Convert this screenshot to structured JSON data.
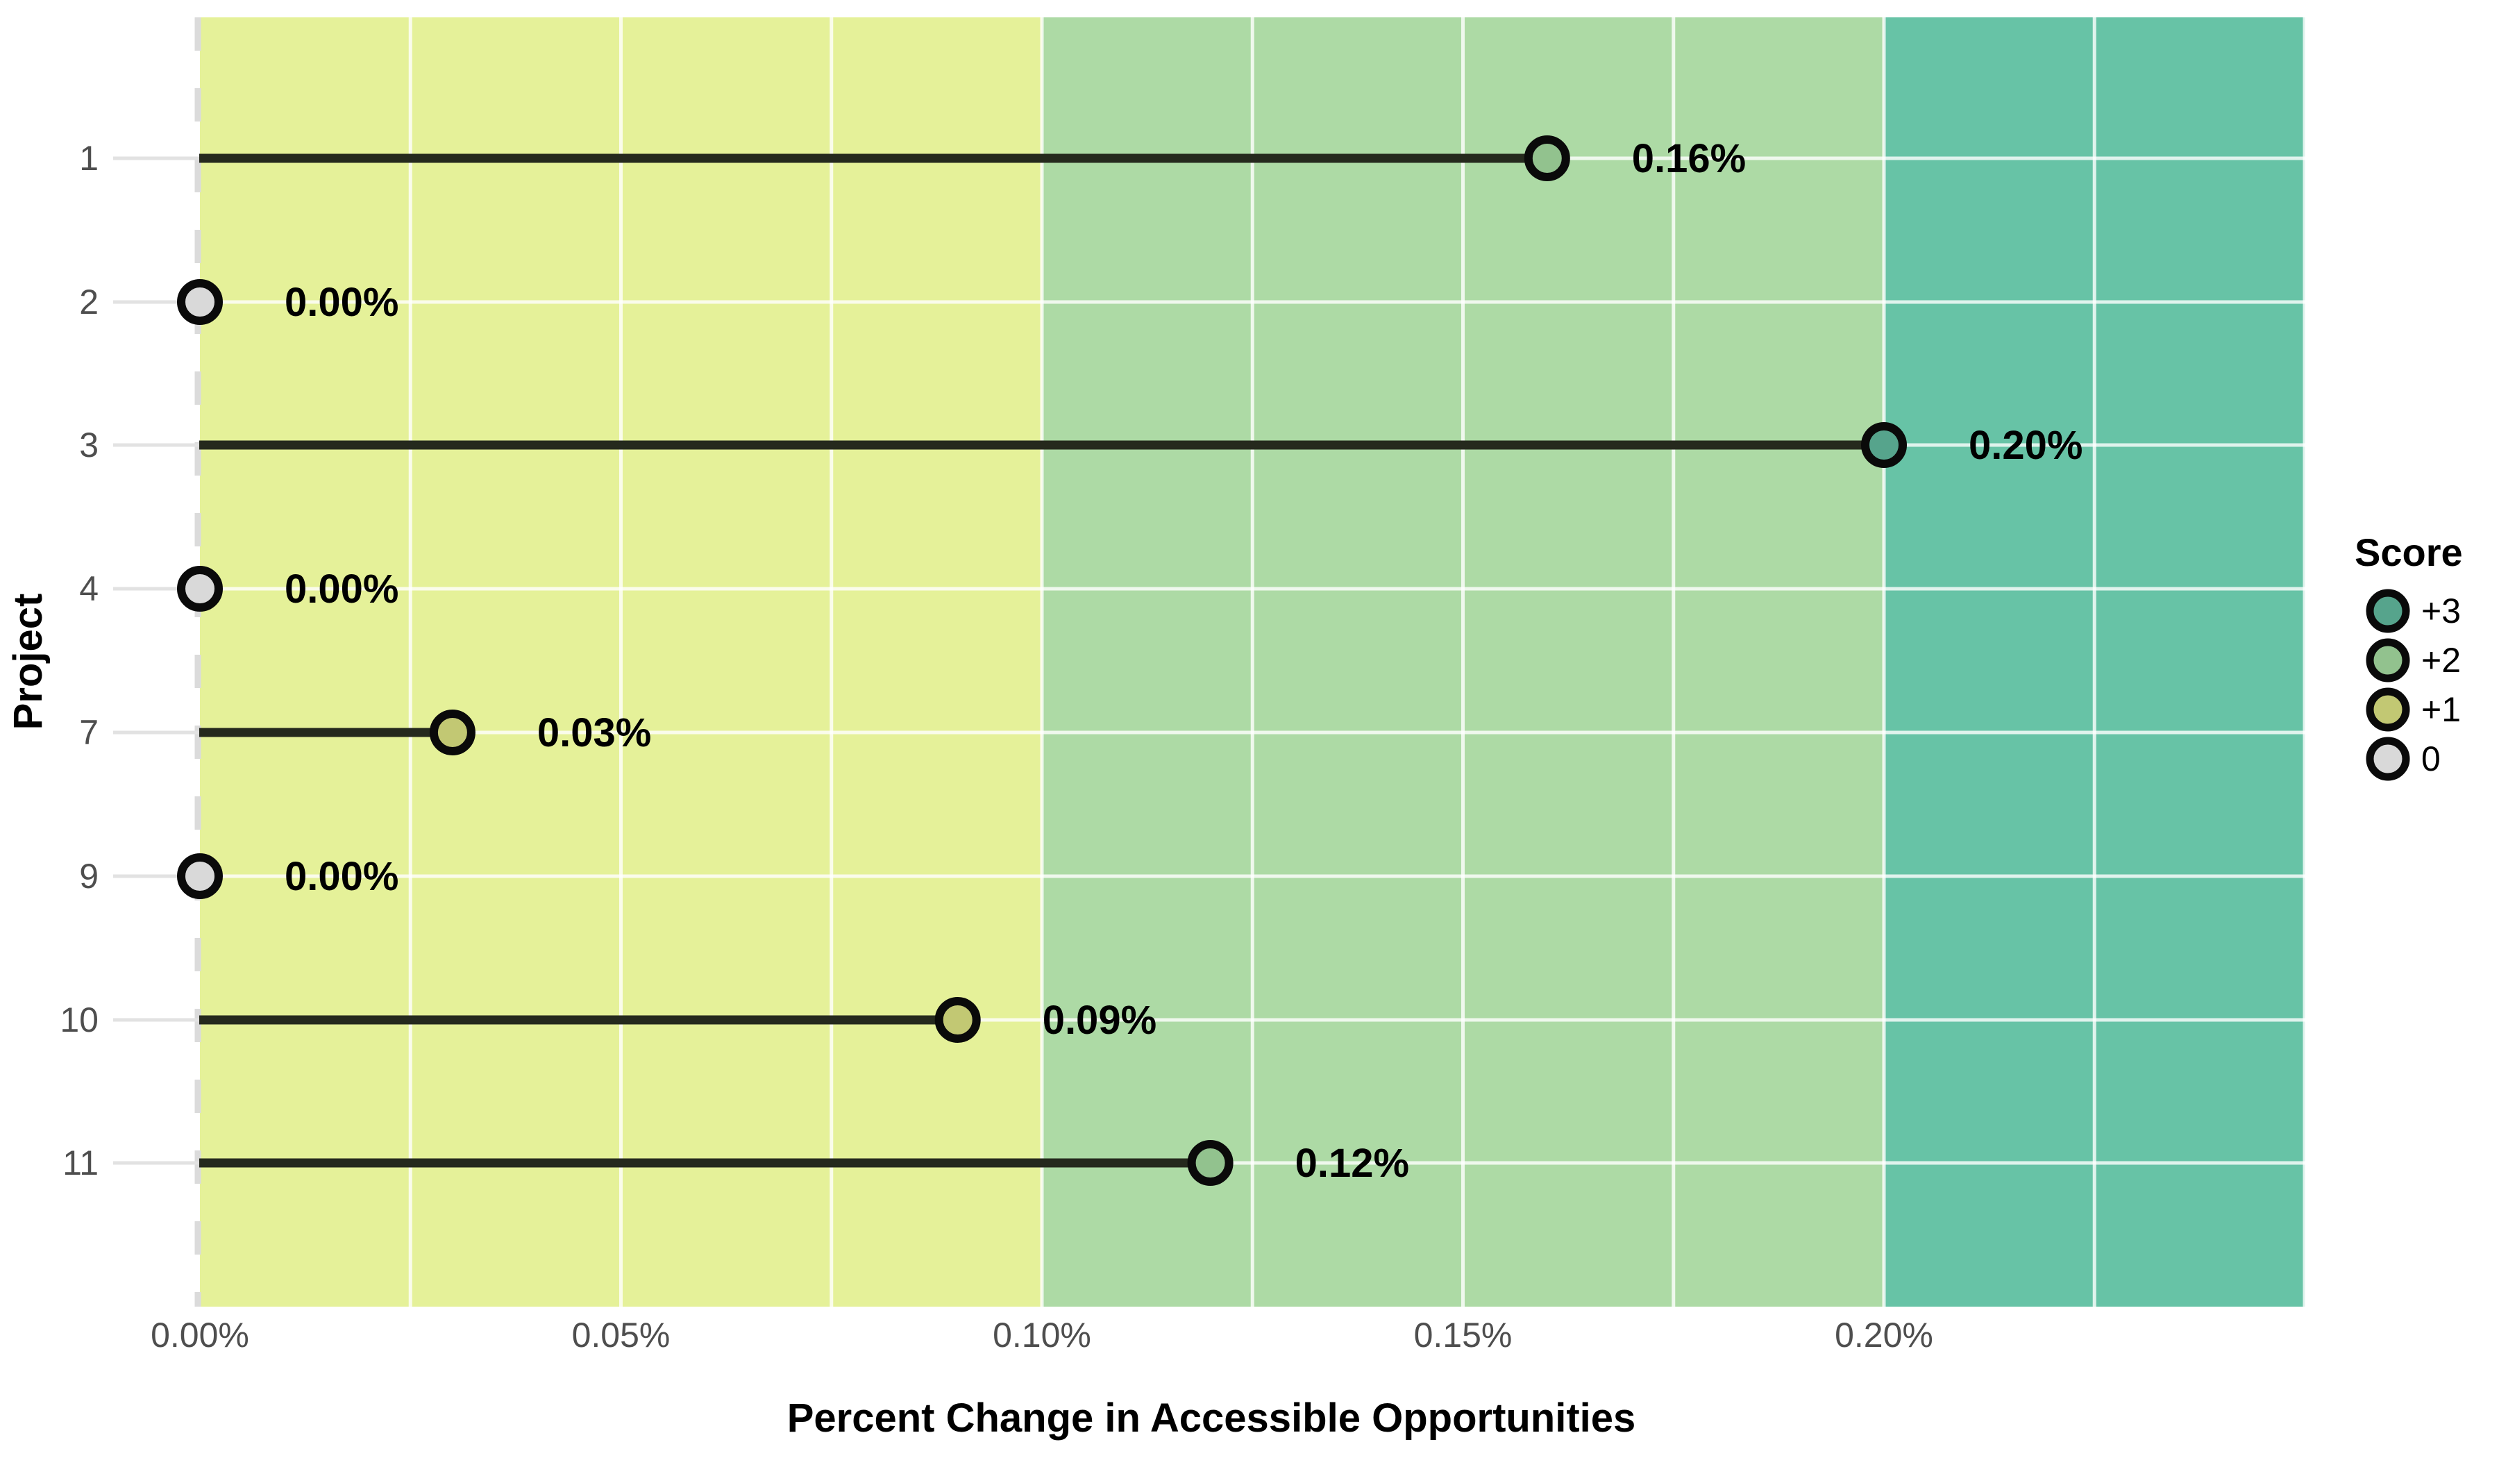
{
  "figure": {
    "background": "#FFFFFF"
  },
  "chart_data": {
    "type": "lollipop",
    "title": "",
    "xlabel": "Percent Change in Accessible Opportunities",
    "ylabel": "Project",
    "xlim_percent": [
      0.0,
      0.25
    ],
    "grid_step_percent": 0.025,
    "grid": "on",
    "legend_position": "right",
    "x_ticks": [
      {
        "value": 0.0,
        "label": "0.00%"
      },
      {
        "value": 0.05,
        "label": "0.05%"
      },
      {
        "value": 0.1,
        "label": "0.10%"
      },
      {
        "value": 0.15,
        "label": "0.15%"
      },
      {
        "value": 0.2,
        "label": "0.20%"
      }
    ],
    "categories": [
      "1",
      "2",
      "3",
      "4",
      "7",
      "9",
      "10",
      "11"
    ],
    "rows": [
      {
        "project": "1",
        "value_percent": 0.16,
        "label": "0.16%",
        "score": "+2"
      },
      {
        "project": "2",
        "value_percent": 0.0,
        "label": "0.00%",
        "score": "0"
      },
      {
        "project": "3",
        "value_percent": 0.2,
        "label": "0.20%",
        "score": "+3"
      },
      {
        "project": "4",
        "value_percent": 0.0,
        "label": "0.00%",
        "score": "0"
      },
      {
        "project": "7",
        "value_percent": 0.03,
        "label": "0.03%",
        "score": "+1"
      },
      {
        "project": "9",
        "value_percent": 0.0,
        "label": "0.00%",
        "score": "0"
      },
      {
        "project": "10",
        "value_percent": 0.09,
        "label": "0.09%",
        "score": "+1"
      },
      {
        "project": "11",
        "value_percent": 0.12,
        "label": "0.12%",
        "score": "+2"
      }
    ],
    "score_bands": [
      {
        "score": "+1",
        "from_percent": 0.0,
        "to_percent": 0.1,
        "color": "#E5F199"
      },
      {
        "score": "+2",
        "from_percent": 0.1,
        "to_percent": 0.2,
        "color": "#ADDAA5"
      },
      {
        "score": "+3",
        "from_percent": 0.2,
        "to_percent": 0.25,
        "color": "#67C3A6"
      }
    ],
    "legend": {
      "title": "Score",
      "entries": [
        {
          "label": "+3",
          "color": "#56A48C"
        },
        {
          "label": "+2",
          "color": "#92C28E"
        },
        {
          "label": "+1",
          "color": "#C2C873"
        },
        {
          "label": "0",
          "color": "#D9D9D9"
        }
      ]
    },
    "marker_colors_by_score": {
      "+3": "#56A48C",
      "+2": "#92C28E",
      "+1": "#C2C873",
      "0": "#D9D9D9"
    },
    "style_colors": {
      "stem": "#25291D",
      "marker_outline": "#0A0A0A",
      "gridline": "#FFFFFF",
      "zero_dash_line": "#DBDBDB",
      "axis_tick": "#E2E2E2",
      "tick_label_text": "#4E4E4E",
      "label_text": "#000000"
    }
  }
}
